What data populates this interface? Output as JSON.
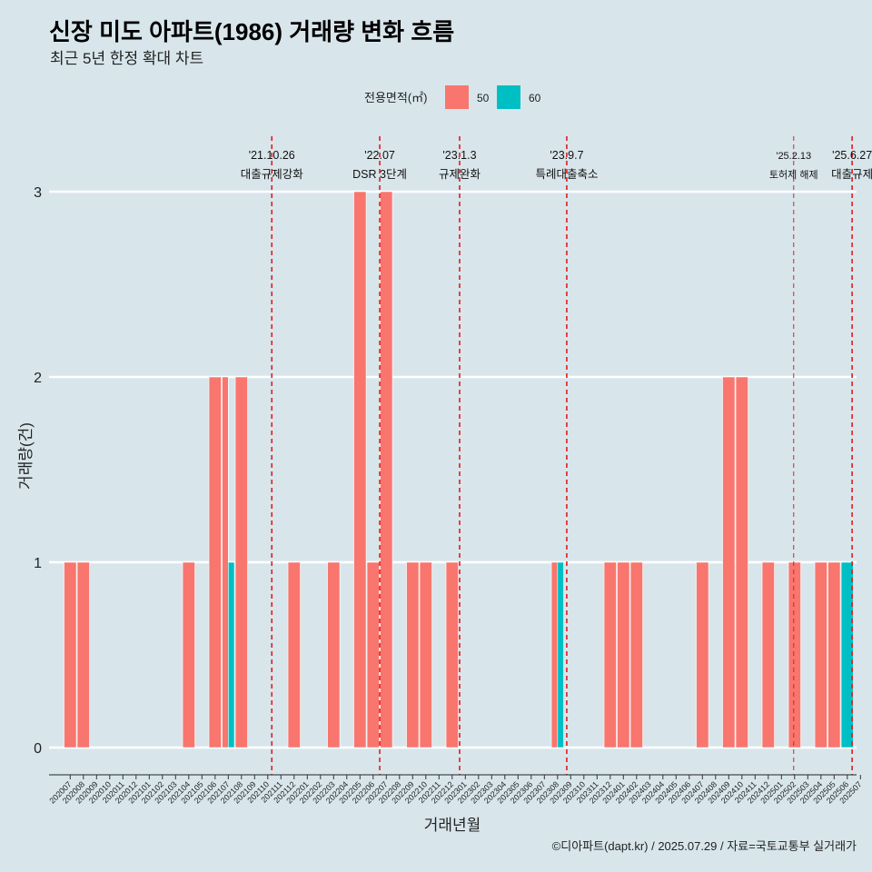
{
  "header": {
    "title": "신장 미도 아파트(1986) 거래량 변화 흐름",
    "subtitle": "최근 5년 한정 확대 차트"
  },
  "caption": "©디아파트(dapt.kr) / 2025.07.29 / 자료=국토교통부 실거래가",
  "colors": {
    "series_50": "#F8766D",
    "series_60": "#00BFC4",
    "background": "#d8e6ec",
    "event_line": "#e41a1c"
  },
  "chart_data": {
    "type": "bar",
    "stacked": false,
    "xlabel": "거래년월",
    "ylabel": "거래량(건)",
    "ylim": [
      0,
      3
    ],
    "yticks": [
      0,
      1,
      2,
      3
    ],
    "legend": {
      "title": "전용면적(㎡)",
      "position": "top"
    },
    "categories": [
      "202007",
      "202008",
      "202009",
      "202010",
      "202011",
      "202012",
      "202101",
      "202102",
      "202103",
      "202104",
      "202105",
      "202106",
      "202107",
      "202108",
      "202109",
      "202110",
      "202111",
      "202112",
      "202201",
      "202202",
      "202203",
      "202204",
      "202205",
      "202206",
      "202207",
      "202208",
      "202209",
      "202210",
      "202211",
      "202212",
      "202301",
      "202302",
      "202303",
      "202304",
      "202305",
      "202306",
      "202307",
      "202308",
      "202309",
      "202310",
      "202311",
      "202312",
      "202401",
      "202402",
      "202403",
      "202404",
      "202405",
      "202406",
      "202407",
      "202408",
      "202409",
      "202410",
      "202411",
      "202412",
      "202501",
      "202502",
      "202503",
      "202504",
      "202505",
      "202506",
      "202507"
    ],
    "series": [
      {
        "name": "50",
        "values": [
          1,
          1,
          0,
          0,
          0,
          0,
          0,
          0,
          0,
          1,
          0,
          2,
          2,
          2,
          0,
          0,
          0,
          1,
          0,
          0,
          1,
          0,
          3,
          1,
          3,
          0,
          1,
          1,
          0,
          1,
          0,
          0,
          0,
          0,
          0,
          0,
          0,
          1,
          0,
          0,
          0,
          1,
          1,
          1,
          0,
          0,
          0,
          0,
          1,
          0,
          2,
          2,
          0,
          1,
          0,
          1,
          0,
          1,
          1,
          0,
          0
        ]
      },
      {
        "name": "60",
        "values": [
          0,
          0,
          0,
          0,
          0,
          0,
          0,
          0,
          0,
          0,
          0,
          0,
          1,
          0,
          0,
          0,
          0,
          0,
          0,
          0,
          0,
          0,
          0,
          0,
          0,
          0,
          0,
          0,
          0,
          0,
          0,
          0,
          0,
          0,
          0,
          0,
          0,
          1,
          0,
          0,
          0,
          0,
          0,
          0,
          0,
          0,
          0,
          0,
          0,
          0,
          0,
          0,
          0,
          0,
          0,
          0,
          0,
          0,
          0,
          1,
          0
        ]
      }
    ],
    "events": [
      {
        "date": "2021-10-26",
        "label_date": "'21.10.26",
        "label_text": "대출규제강화"
      },
      {
        "date": "2022-07-01",
        "label_date": "'22.07",
        "label_text": "DSR 3단계"
      },
      {
        "date": "2023-01-03",
        "label_date": "'23.1.3",
        "label_text": "규제완화"
      },
      {
        "date": "2023-09-07",
        "label_date": "'23.9.7",
        "label_text": "특례대출축소"
      },
      {
        "date": "2025-02-13",
        "label_date": "'25.2.13",
        "label_text": "토허제 해제"
      },
      {
        "date": "2025-06-27",
        "label_date": "'25.6.27",
        "label_text": "대출규제"
      }
    ]
  }
}
